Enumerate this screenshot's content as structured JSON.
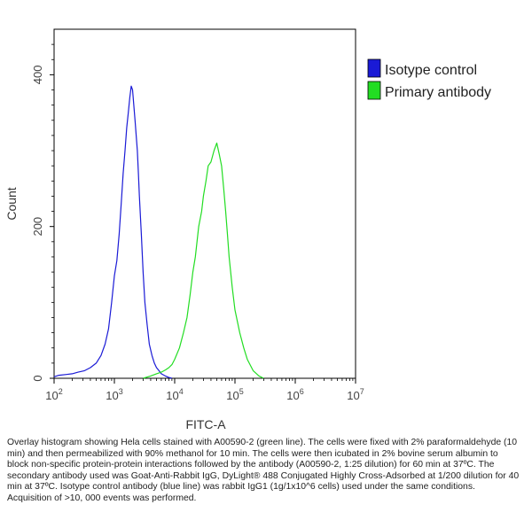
{
  "chart_data": {
    "type": "line",
    "title": "",
    "xlabel": "FITC-A",
    "ylabel": "Count",
    "x_scale": "log",
    "xlim": [
      100,
      10000000
    ],
    "ylim": [
      0,
      460
    ],
    "x_ticks": [
      {
        "value": 100,
        "base": "10",
        "exp": "2"
      },
      {
        "value": 1000,
        "base": "10",
        "exp": "3"
      },
      {
        "value": 10000,
        "base": "10",
        "exp": "4"
      },
      {
        "value": 100000,
        "base": "10",
        "exp": "5"
      },
      {
        "value": 1000000,
        "base": "10",
        "exp": "6"
      },
      {
        "value": 10000000,
        "base": "10",
        "exp": "7"
      }
    ],
    "y_ticks": [
      {
        "value": 0,
        "label": "0"
      },
      {
        "value": 200,
        "label": "200"
      },
      {
        "value": 400,
        "label": "400"
      }
    ],
    "grid": false,
    "legend_position": "top-right",
    "series": [
      {
        "name": "Isotype control",
        "color": "#1a1ad6",
        "x": [
          100,
          120,
          160,
          200,
          250,
          320,
          400,
          500,
          600,
          700,
          800,
          900,
          1000,
          1100,
          1200,
          1300,
          1400,
          1500,
          1600,
          1700,
          1800,
          1900,
          2000,
          2100,
          2200,
          2300,
          2400,
          2500,
          2600,
          2800,
          3000,
          3200,
          3500,
          3800,
          4200,
          4600,
          5000,
          5500,
          6000,
          7000,
          8000,
          9000
        ],
        "y": [
          2,
          4,
          5,
          6,
          8,
          10,
          14,
          20,
          30,
          45,
          65,
          100,
          135,
          155,
          190,
          230,
          270,
          300,
          330,
          350,
          370,
          385,
          380,
          360,
          340,
          320,
          300,
          270,
          240,
          190,
          140,
          100,
          70,
          45,
          30,
          20,
          14,
          10,
          6,
          3,
          1,
          0
        ]
      },
      {
        "name": "Primary antibody",
        "color": "#22dd22",
        "x": [
          3000,
          4000,
          5000,
          6000,
          7000,
          8000,
          9000,
          10000,
          12000,
          14000,
          16000,
          18000,
          20000,
          22000,
          25000,
          28000,
          30000,
          33000,
          36000,
          40000,
          45000,
          50000,
          55000,
          60000,
          65000,
          70000,
          75000,
          80000,
          90000,
          100000,
          120000,
          140000,
          160000,
          200000,
          250000,
          300000
        ],
        "y": [
          0,
          3,
          6,
          8,
          11,
          14,
          18,
          25,
          40,
          60,
          80,
          110,
          140,
          160,
          200,
          220,
          240,
          260,
          280,
          285,
          300,
          310,
          295,
          280,
          250,
          220,
          190,
          160,
          120,
          90,
          60,
          40,
          25,
          10,
          3,
          0
        ]
      }
    ]
  },
  "caption": "Overlay histogram showing Hela cells stained with A00590-2 (green line). The cells were fixed with 2% paraformaldehyde (10 min) and then permeabilized with 90% methanol for 10 min. The cells were then icubated in 2% bovine serum albumin to block non-specific protein-protein interactions followed by the antibody (A00590-2, 1:25 dilution) for 60 min at 37ºC. The secondary antibody used was Goat-Anti-Rabbit IgG, DyLight® 488 Conjugated Highly Cross-Adsorbed at 1/200 dilution for 40 min at 37ºC. Isotype control antibody (blue line) was rabbit IgG1 (1g/1x10^6 cells) used under the same conditions. Acquisition of >10, 000 events was performed."
}
